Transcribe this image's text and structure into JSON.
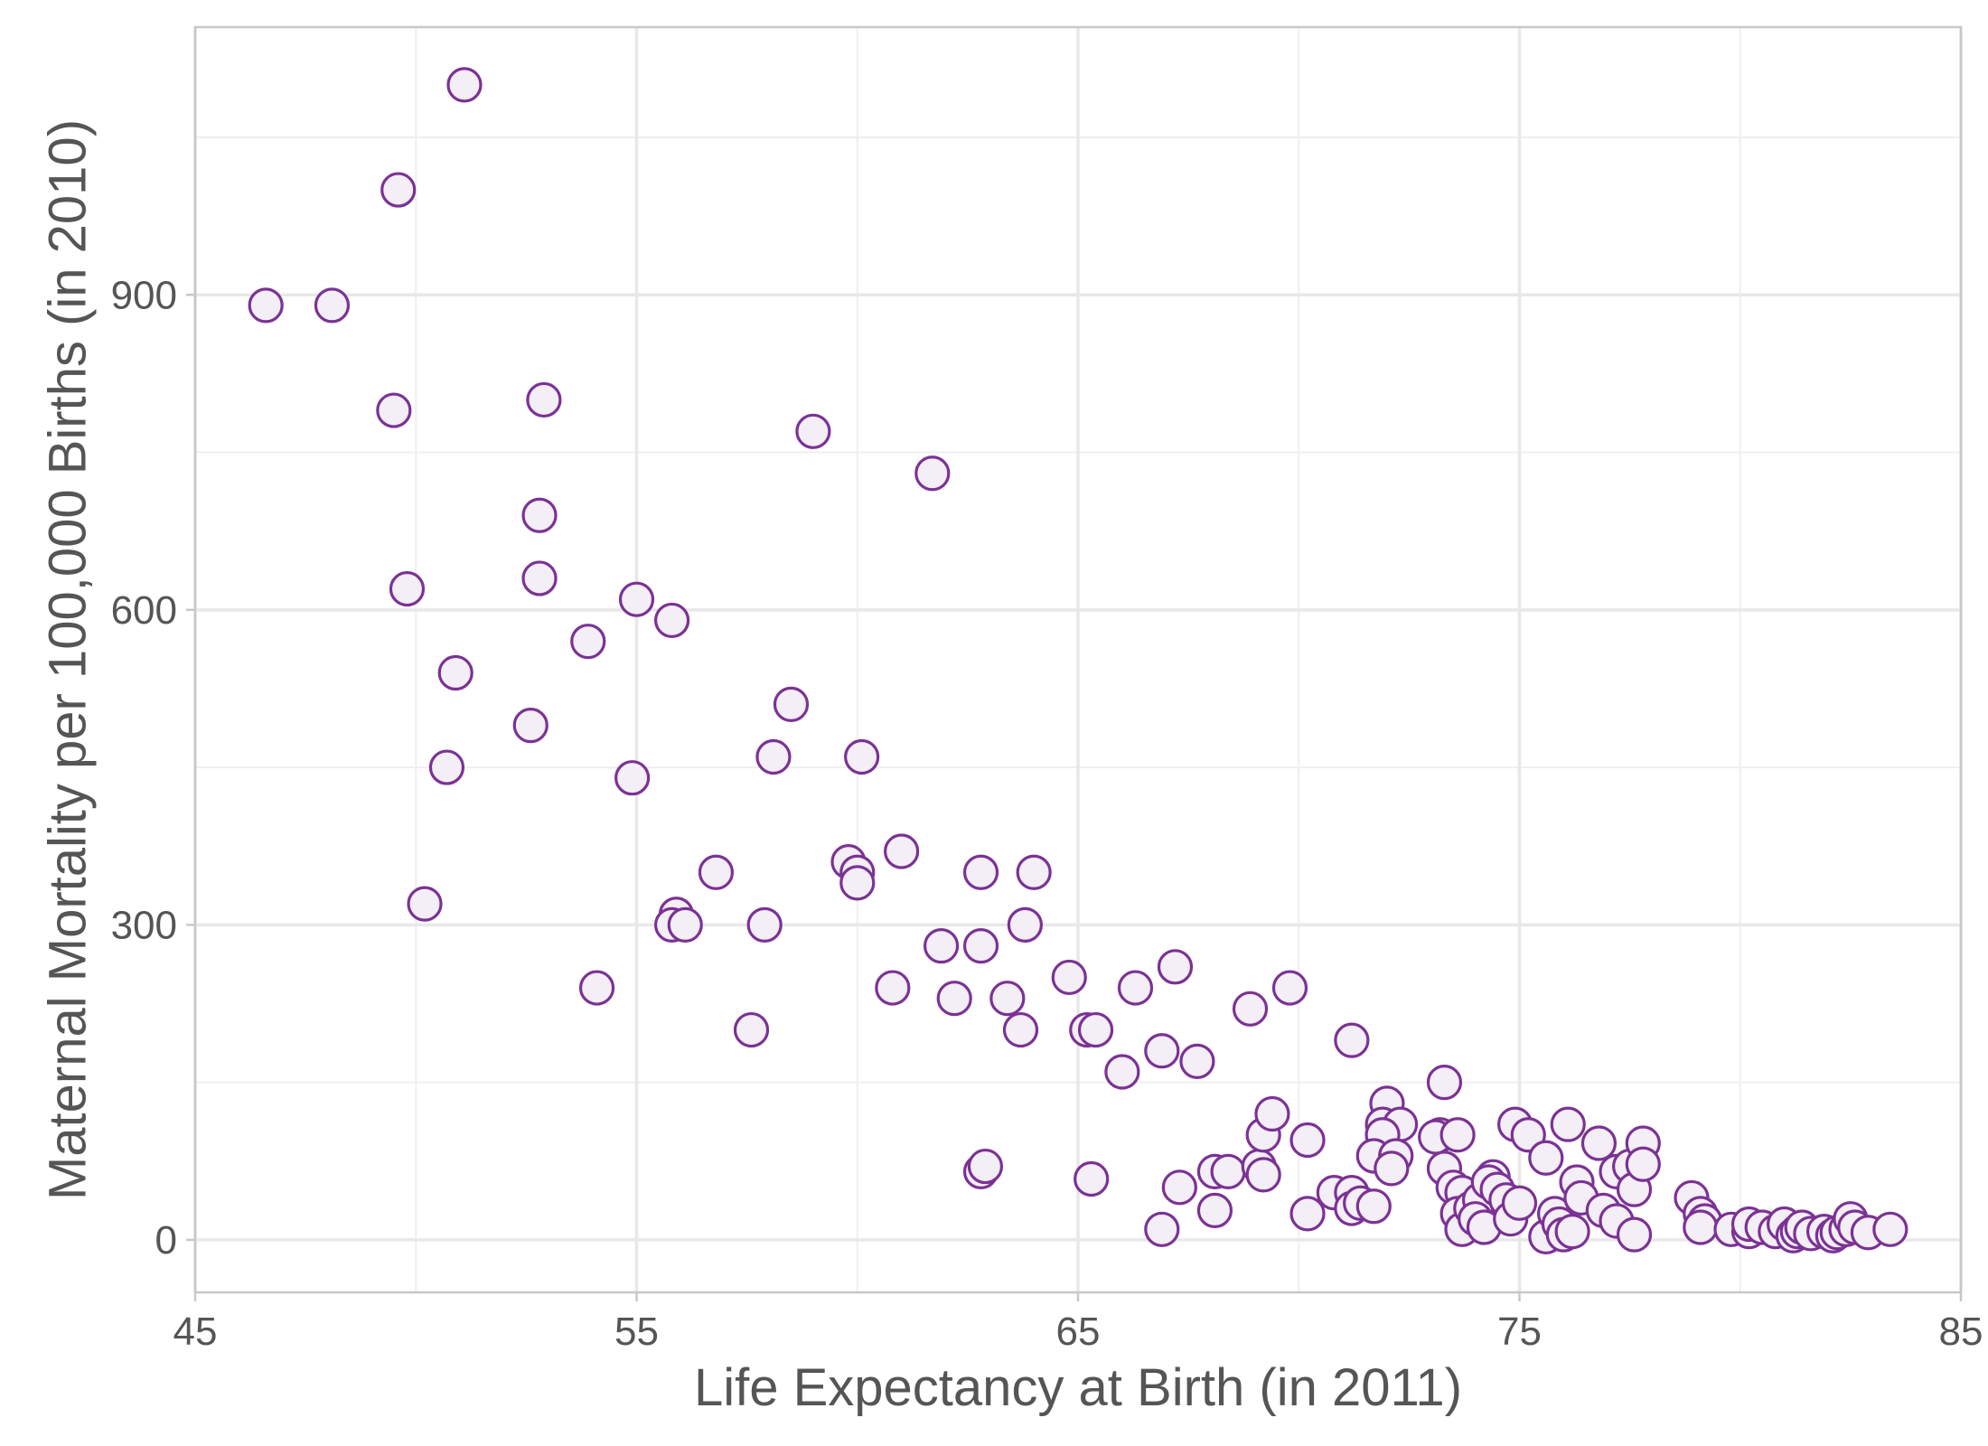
{
  "chart_data": {
    "type": "scatter",
    "title": "",
    "xlabel": "Life Expectancy at Birth (in 2011)",
    "ylabel": "Maternal Mortality per 100,000 Births (in 2010)",
    "xlim": [
      45,
      85
    ],
    "ylim": [
      -50,
      1155
    ],
    "x_ticks": [
      45,
      55,
      65,
      75,
      85
    ],
    "y_ticks": [
      0,
      300,
      600,
      900
    ],
    "x_minor_ticks": [
      50,
      60,
      70,
      80
    ],
    "y_minor_ticks": [
      150,
      450,
      750,
      1050
    ],
    "grid": true,
    "marker": "hollow-circle",
    "colors": {
      "stroke": "#7b3294",
      "fill": "#f4eef6"
    },
    "points": [
      {
        "x": 46.6,
        "y": 890
      },
      {
        "x": 48.1,
        "y": 890
      },
      {
        "x": 49.6,
        "y": 1000
      },
      {
        "x": 51.1,
        "y": 1100
      },
      {
        "x": 49.5,
        "y": 790
      },
      {
        "x": 52.9,
        "y": 800
      },
      {
        "x": 52.8,
        "y": 690
      },
      {
        "x": 52.8,
        "y": 630
      },
      {
        "x": 49.8,
        "y": 620
      },
      {
        "x": 55.0,
        "y": 610
      },
      {
        "x": 55.8,
        "y": 590
      },
      {
        "x": 54.9,
        "y": 440
      },
      {
        "x": 53.9,
        "y": 570
      },
      {
        "x": 50.9,
        "y": 540
      },
      {
        "x": 52.6,
        "y": 490
      },
      {
        "x": 50.7,
        "y": 450
      },
      {
        "x": 50.2,
        "y": 320
      },
      {
        "x": 54.1,
        "y": 240
      },
      {
        "x": 59.0,
        "y": 770
      },
      {
        "x": 61.7,
        "y": 730
      },
      {
        "x": 58.5,
        "y": 510
      },
      {
        "x": 58.1,
        "y": 460
      },
      {
        "x": 60.1,
        "y": 460
      },
      {
        "x": 56.8,
        "y": 350
      },
      {
        "x": 55.9,
        "y": 310
      },
      {
        "x": 55.8,
        "y": 300
      },
      {
        "x": 56.1,
        "y": 300
      },
      {
        "x": 57.9,
        "y": 300
      },
      {
        "x": 57.6,
        "y": 200
      },
      {
        "x": 59.8,
        "y": 360
      },
      {
        "x": 60.0,
        "y": 350
      },
      {
        "x": 60.0,
        "y": 340
      },
      {
        "x": 61.0,
        "y": 370
      },
      {
        "x": 60.8,
        "y": 240
      },
      {
        "x": 61.9,
        "y": 280
      },
      {
        "x": 62.2,
        "y": 230
      },
      {
        "x": 62.8,
        "y": 350
      },
      {
        "x": 62.8,
        "y": 280
      },
      {
        "x": 64.0,
        "y": 350
      },
      {
        "x": 63.8,
        "y": 300
      },
      {
        "x": 63.4,
        "y": 230
      },
      {
        "x": 63.7,
        "y": 200
      },
      {
        "x": 62.8,
        "y": 65
      },
      {
        "x": 62.9,
        "y": 70
      },
      {
        "x": 64.8,
        "y": 250
      },
      {
        "x": 65.2,
        "y": 200
      },
      {
        "x": 65.4,
        "y": 200
      },
      {
        "x": 66.0,
        "y": 160
      },
      {
        "x": 66.3,
        "y": 240
      },
      {
        "x": 67.2,
        "y": 260
      },
      {
        "x": 66.9,
        "y": 180
      },
      {
        "x": 67.7,
        "y": 170
      },
      {
        "x": 65.3,
        "y": 58
      },
      {
        "x": 67.3,
        "y": 50
      },
      {
        "x": 66.9,
        "y": 10
      },
      {
        "x": 68.1,
        "y": 65
      },
      {
        "x": 68.4,
        "y": 65
      },
      {
        "x": 68.1,
        "y": 28
      },
      {
        "x": 68.9,
        "y": 220
      },
      {
        "x": 69.8,
        "y": 240
      },
      {
        "x": 69.1,
        "y": 70
      },
      {
        "x": 69.2,
        "y": 62
      },
      {
        "x": 69.2,
        "y": 100
      },
      {
        "x": 69.4,
        "y": 120
      },
      {
        "x": 70.2,
        "y": 95
      },
      {
        "x": 70.2,
        "y": 25
      },
      {
        "x": 70.8,
        "y": 45
      },
      {
        "x": 71.2,
        "y": 45
      },
      {
        "x": 71.2,
        "y": 30
      },
      {
        "x": 71.4,
        "y": 35
      },
      {
        "x": 71.7,
        "y": 32
      },
      {
        "x": 71.2,
        "y": 190
      },
      {
        "x": 72.0,
        "y": 130
      },
      {
        "x": 71.9,
        "y": 110
      },
      {
        "x": 72.3,
        "y": 110
      },
      {
        "x": 71.9,
        "y": 100
      },
      {
        "x": 71.7,
        "y": 80
      },
      {
        "x": 72.2,
        "y": 80
      },
      {
        "x": 72.1,
        "y": 68
      },
      {
        "x": 73.3,
        "y": 150
      },
      {
        "x": 73.2,
        "y": 100
      },
      {
        "x": 73.1,
        "y": 98
      },
      {
        "x": 73.6,
        "y": 100
      },
      {
        "x": 73.3,
        "y": 68
      },
      {
        "x": 73.5,
        "y": 50
      },
      {
        "x": 73.7,
        "y": 45
      },
      {
        "x": 73.6,
        "y": 25
      },
      {
        "x": 73.7,
        "y": 10
      },
      {
        "x": 73.9,
        "y": 30
      },
      {
        "x": 74.1,
        "y": 38
      },
      {
        "x": 74.0,
        "y": 20
      },
      {
        "x": 74.2,
        "y": 12
      },
      {
        "x": 74.4,
        "y": 60
      },
      {
        "x": 74.3,
        "y": 55
      },
      {
        "x": 74.5,
        "y": 48
      },
      {
        "x": 74.7,
        "y": 38
      },
      {
        "x": 74.8,
        "y": 20
      },
      {
        "x": 75.0,
        "y": 35
      },
      {
        "x": 74.9,
        "y": 110
      },
      {
        "x": 75.2,
        "y": 100
      },
      {
        "x": 75.6,
        "y": 78
      },
      {
        "x": 75.6,
        "y": 3
      },
      {
        "x": 75.8,
        "y": 25
      },
      {
        "x": 75.9,
        "y": 15
      },
      {
        "x": 76.0,
        "y": 5
      },
      {
        "x": 76.1,
        "y": 110
      },
      {
        "x": 76.2,
        "y": 8
      },
      {
        "x": 76.3,
        "y": 55
      },
      {
        "x": 76.4,
        "y": 40
      },
      {
        "x": 76.8,
        "y": 92
      },
      {
        "x": 76.9,
        "y": 28
      },
      {
        "x": 77.2,
        "y": 65
      },
      {
        "x": 77.2,
        "y": 18
      },
      {
        "x": 77.5,
        "y": 70
      },
      {
        "x": 77.6,
        "y": 48
      },
      {
        "x": 77.6,
        "y": 5
      },
      {
        "x": 77.8,
        "y": 92
      },
      {
        "x": 77.8,
        "y": 72
      },
      {
        "x": 78.9,
        "y": 40
      },
      {
        "x": 79.1,
        "y": 25
      },
      {
        "x": 79.2,
        "y": 18
      },
      {
        "x": 79.1,
        "y": 12
      },
      {
        "x": 79.8,
        "y": 10
      },
      {
        "x": 80.2,
        "y": 8
      },
      {
        "x": 80.2,
        "y": 15
      },
      {
        "x": 80.5,
        "y": 12
      },
      {
        "x": 80.8,
        "y": 8
      },
      {
        "x": 81.0,
        "y": 15
      },
      {
        "x": 81.2,
        "y": 4
      },
      {
        "x": 81.3,
        "y": 8
      },
      {
        "x": 81.4,
        "y": 12
      },
      {
        "x": 81.6,
        "y": 6
      },
      {
        "x": 81.9,
        "y": 8
      },
      {
        "x": 82.1,
        "y": 4
      },
      {
        "x": 82.2,
        "y": 7
      },
      {
        "x": 82.4,
        "y": 10
      },
      {
        "x": 82.5,
        "y": 20
      },
      {
        "x": 82.6,
        "y": 12
      },
      {
        "x": 82.9,
        "y": 7
      },
      {
        "x": 83.4,
        "y": 10
      }
    ]
  }
}
